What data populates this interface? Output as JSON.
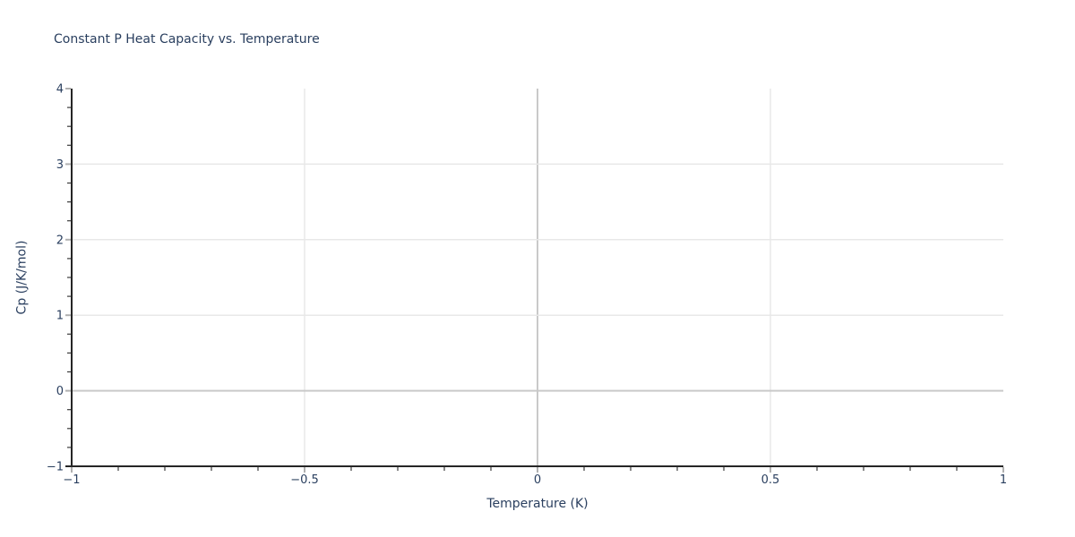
{
  "chart_data": {
    "type": "line",
    "title": "Constant P Heat Capacity vs. Temperature",
    "xlabel": "Temperature (K)",
    "ylabel": "Cp (J/K/mol)",
    "xlim": [
      -1,
      1
    ],
    "ylim": [
      -1,
      4
    ],
    "x_ticks": [
      -1,
      -0.5,
      0,
      0.5,
      1
    ],
    "x_tick_labels": [
      "−1",
      "−0.5",
      "0",
      "0.5",
      "1"
    ],
    "y_ticks": [
      -1,
      0,
      1,
      2,
      3,
      4
    ],
    "y_tick_labels": [
      "−1",
      "0",
      "1",
      "2",
      "3",
      "4"
    ],
    "x_minor_tick_step": 0.1,
    "y_minor_tick_step": 0.25,
    "grid": true,
    "legend_visible": false,
    "series": [],
    "colors": {
      "text": "#2a3f5f",
      "spine": "#262626",
      "grid": "#e8e8e8",
      "zeroline": "#c9c9c9",
      "major_tick": "#b0b0b0",
      "minor_tick": "#3b3b3b",
      "background": "#ffffff"
    }
  }
}
